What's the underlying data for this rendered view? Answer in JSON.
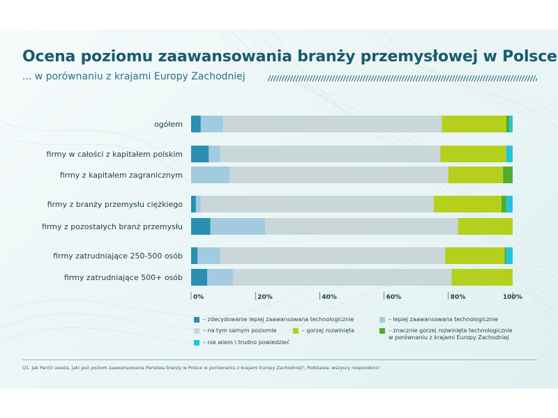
{
  "title": "Ocena poziomu zaawansowania branży przemysłowej w Polsce",
  "subtitle": "... w porównaniu z krajami Europy Zachodniej",
  "footnote": "Q1. Jak Pan(i) uważa, jaki jest poziom zaawansowania Państwa branży w Polsce w porównaniu z krajami Europy Zachodniej?; Podstawa: wszyscy respondenci",
  "colors": {
    "title": "#1a5a6f",
    "background": "#e9f4f5"
  },
  "chart_data": {
    "type": "bar",
    "orientation": "horizontal",
    "stacked": true,
    "categories": [
      "ogółem",
      "firmy w całości z kapitałem polskim",
      "firmy z kapitałem zagranicznym",
      "firmy z branży przemysłu ciężkiego",
      "firmy z pozostałych branż przemysłu",
      "firmy zatrudniające 250-500 osób",
      "firmy zatrudniające 500+ osób"
    ],
    "groups": [
      1,
      2,
      2,
      3,
      3,
      4,
      4
    ],
    "xlim": [
      0,
      100
    ],
    "xticks": [
      "0%",
      "20%",
      "40%",
      "60%",
      "80%",
      "100%"
    ],
    "grid": false,
    "legend_position": "bottom",
    "series": [
      {
        "name": "– zdecydowanie lepiej zaawansowana technologicznie",
        "color": "#2a8fb3",
        "values": [
          3,
          5.5,
          0,
          1.5,
          6,
          2,
          5
        ]
      },
      {
        "name": "– lepiej zaawansowana technologicznie",
        "color": "#a3cbe0",
        "values": [
          7,
          3.5,
          12,
          1.5,
          17,
          7,
          8
        ]
      },
      {
        "name": "– na tym samym poziomie",
        "color": "#c9d6da",
        "values": [
          68,
          68.5,
          68,
          72.5,
          60,
          70,
          68
        ]
      },
      {
        "name": "– gorzej rozwinięta",
        "color": "#b5d01c",
        "values": [
          20,
          20.5,
          17,
          21,
          17,
          18.5,
          19
        ]
      },
      {
        "name": "– znacznie gorzej rozwinięta technologicznie\nw porównaniu z krajami Europy Zachodniej",
        "color": "#4fac2e",
        "values": [
          1,
          0,
          3,
          1.5,
          0,
          0.5,
          0
        ]
      },
      {
        "name": "– nie wiem \\ trudno powiedzieć",
        "color": "#21c5dc",
        "values": [
          1,
          2,
          0,
          2,
          0,
          2,
          0
        ]
      }
    ]
  }
}
